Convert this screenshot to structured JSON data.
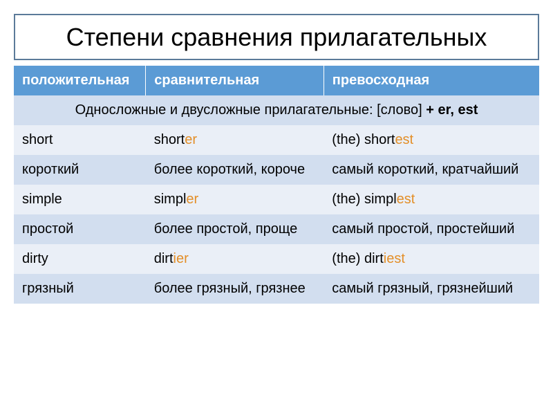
{
  "title": "Степени сравнения прилагательных",
  "title_fontsize": 36,
  "header_bg": "#5b9bd5",
  "header_color": "#ffffff",
  "header_fontsize": 20,
  "row_light_bg": "#eaeff7",
  "row_dark_bg": "#d2deef",
  "cell_fontsize": 20,
  "suffix_color": "#e38e27",
  "columns": [
    {
      "label": "положительная"
    },
    {
      "label": "сравнительная"
    },
    {
      "label": "превосходная"
    }
  ],
  "rule_text_pre": "Односложные и двусложные прилагательные: [слово] ",
  "rule_text_bold": "+ er, est",
  "rows": [
    {
      "shade": "light",
      "cells": [
        {
          "base": "short",
          "suffix": ""
        },
        {
          "base": "short",
          "suffix": "er"
        },
        {
          "base": "(the) short",
          "suffix": "est"
        }
      ]
    },
    {
      "shade": "dark",
      "cells": [
        {
          "base": "короткий",
          "suffix": ""
        },
        {
          "base": "более короткий, короче",
          "suffix": ""
        },
        {
          "base": "самый короткий, кратчайший",
          "suffix": ""
        }
      ]
    },
    {
      "shade": "light",
      "cells": [
        {
          "base": "simple",
          "suffix": ""
        },
        {
          "base": "simpl",
          "suffix": "er"
        },
        {
          "base": "(the) simpl",
          "suffix": "est"
        }
      ]
    },
    {
      "shade": "dark",
      "cells": [
        {
          "base": "простой",
          "suffix": ""
        },
        {
          "base": "более простой, проще",
          "suffix": ""
        },
        {
          "base": "самый простой, простейший",
          "suffix": ""
        }
      ]
    },
    {
      "shade": "light",
      "cells": [
        {
          "base": "dirty",
          "suffix": ""
        },
        {
          "base": "dirt",
          "i": "i",
          "suffix": "er"
        },
        {
          "base": "(the) dirt",
          "i": "i",
          "suffix": "est"
        }
      ]
    },
    {
      "shade": "dark",
      "cells": [
        {
          "base": "грязный",
          "suffix": ""
        },
        {
          "base": "более грязный, грязнее",
          "suffix": ""
        },
        {
          "base": "самый грязный, грязнейший",
          "suffix": ""
        }
      ]
    }
  ]
}
